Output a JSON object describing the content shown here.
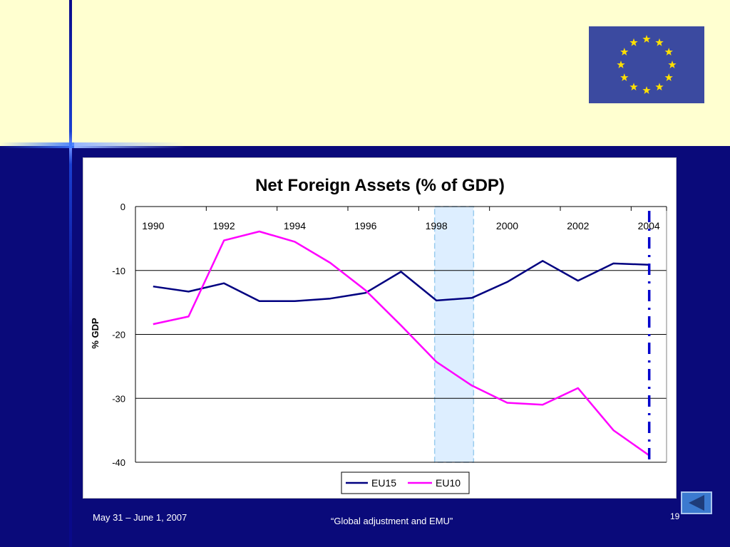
{
  "colors": {
    "header_bg": "#ffffd0",
    "slide_bg": "#0a0a7a",
    "eu15": "#000080",
    "eu10": "#ff00ff",
    "highlight_fill": "#ddeeff",
    "highlight_border": "#99ccee",
    "marker_line": "#0000cc"
  },
  "icons": {
    "flag": "eu-flag-icon",
    "back": "back-arrow-icon"
  },
  "footer": {
    "date": "May 31 – June 1, 2007",
    "title": "“Global adjustment and EMU”",
    "page": "19"
  },
  "chart_data": {
    "type": "line",
    "title": "Net Foreign Assets (% of GDP)",
    "xlabel": "",
    "ylabel": "% GDP",
    "ylim": [
      -40,
      0
    ],
    "yticks": [
      0,
      -10,
      -20,
      -30,
      -40
    ],
    "x": [
      1990,
      1991,
      1992,
      1993,
      1994,
      1995,
      1996,
      1997,
      1998,
      1999,
      2000,
      2001,
      2002,
      2003,
      2004
    ],
    "xtick_labels": [
      "1990",
      "1992",
      "1994",
      "1996",
      "1998",
      "2000",
      "2002",
      "2004"
    ],
    "series": [
      {
        "name": "EU15",
        "values": [
          -12.5,
          -13.3,
          -12.0,
          -14.8,
          -14.8,
          -14.4,
          -13.5,
          -10.2,
          -14.7,
          -14.3,
          -11.8,
          -8.5,
          -11.6,
          -8.9,
          -9.1
        ]
      },
      {
        "name": "EU10",
        "values": [
          -18.4,
          -17.2,
          -5.3,
          -3.9,
          -5.5,
          -8.8,
          -13.1,
          -18.6,
          -24.3,
          -28.0,
          -30.7,
          -31.0,
          -28.4,
          -35.0,
          -38.9
        ]
      }
    ],
    "shaded_range": [
      1998,
      1999
    ],
    "vertical_marker": 2004,
    "grid": true,
    "legend": "bottom"
  }
}
